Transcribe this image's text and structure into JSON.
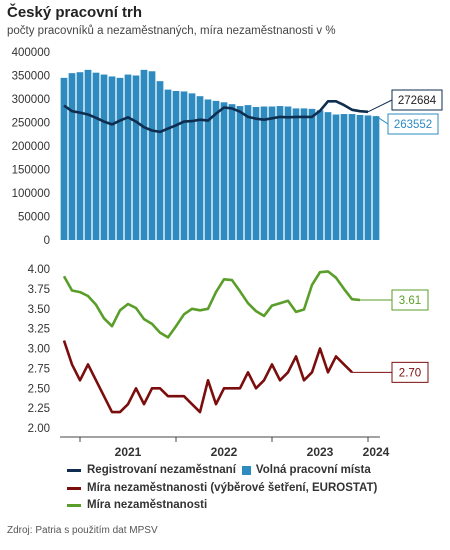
{
  "title": "Český pracovní trh",
  "subtitle": "počty pracovníků a nezaměstnaných, míra nezaměstnanosti v %",
  "source": "Zdroj: Patria s použitím dat MPSV",
  "colors": {
    "vacancies": "#2e8bc0",
    "registered": "#0f2e4f",
    "rate_survey": "#7b0d0d",
    "rate": "#5a9e2a"
  },
  "legend": {
    "registered": "Registrovaní nezaměstnaní",
    "vacancies": "Volná pracovní místa",
    "rate_survey": "Míra nezaměstnanosti (výběrové šetření, EUROSTAT)",
    "rate": "Míra nezaměstnanosti"
  },
  "chart_data": [
    {
      "type": "bar",
      "title": "",
      "ylim": [
        0,
        400000
      ],
      "yticks": [
        "0",
        "50000",
        "100000",
        "150000",
        "200000",
        "250000",
        "300000",
        "350000",
        "400000"
      ],
      "x_labels": [
        "2021",
        "2022",
        "2023",
        "2024"
      ],
      "series": [
        {
          "name": "Volná pracovní místa",
          "type": "bar",
          "values": [
            345000,
            355000,
            357000,
            362000,
            356000,
            352000,
            348000,
            345000,
            352000,
            350000,
            362000,
            359000,
            338000,
            320000,
            317000,
            316000,
            312000,
            306000,
            299000,
            296000,
            293000,
            289000,
            285000,
            287000,
            283000,
            284000,
            284000,
            285000,
            284000,
            280000,
            280000,
            279000,
            276000,
            272000,
            267000,
            268000,
            268000,
            266000,
            265000,
            263552
          ]
        },
        {
          "name": "Registrovaní nezaměstnaní",
          "type": "line",
          "values": [
            286000,
            274000,
            271000,
            267000,
            260000,
            252000,
            246000,
            254000,
            261000,
            252000,
            240000,
            233000,
            230000,
            237000,
            244000,
            252000,
            253000,
            256000,
            254000,
            269000,
            282000,
            280000,
            273000,
            262000,
            258000,
            256000,
            259000,
            262000,
            261000,
            262000,
            262000,
            262000,
            275000,
            295000,
            295000,
            287000,
            277000,
            274000,
            272684
          ]
        }
      ],
      "end_labels": {
        "registered": "272684",
        "vacancies": "263552"
      }
    },
    {
      "type": "line",
      "title": "",
      "ylim": [
        2.0,
        4.0
      ],
      "yticks": [
        "2.00",
        "2.25",
        "2.50",
        "2.75",
        "3.00",
        "3.25",
        "3.50",
        "3.75",
        "4.00"
      ],
      "x_labels": [
        "2021",
        "2022",
        "2023",
        "2024"
      ],
      "series": [
        {
          "name": "Míra nezaměstnanosti",
          "values": [
            3.91,
            3.73,
            3.71,
            3.66,
            3.55,
            3.38,
            3.28,
            3.48,
            3.56,
            3.51,
            3.37,
            3.31,
            3.2,
            3.14,
            3.28,
            3.43,
            3.5,
            3.48,
            3.5,
            3.71,
            3.87,
            3.86,
            3.72,
            3.57,
            3.47,
            3.41,
            3.54,
            3.57,
            3.6,
            3.46,
            3.49,
            3.8,
            3.96,
            3.97,
            3.89,
            3.75,
            3.62,
            3.61
          ]
        },
        {
          "name": "Míra nezaměstnanosti (výběrové šetření, EUROSTAT)",
          "values": [
            3.1,
            2.8,
            2.6,
            2.8,
            2.6,
            2.4,
            2.2,
            2.2,
            2.3,
            2.5,
            2.3,
            2.5,
            2.5,
            2.4,
            2.4,
            2.4,
            2.3,
            2.2,
            2.6,
            2.3,
            2.5,
            2.5,
            2.5,
            2.7,
            2.5,
            2.6,
            2.8,
            2.6,
            2.7,
            2.9,
            2.6,
            2.7,
            3.0,
            2.7,
            2.9,
            2.8,
            2.7
          ]
        }
      ],
      "end_labels": {
        "rate": "3.61",
        "rate_survey": "2.70"
      }
    }
  ]
}
